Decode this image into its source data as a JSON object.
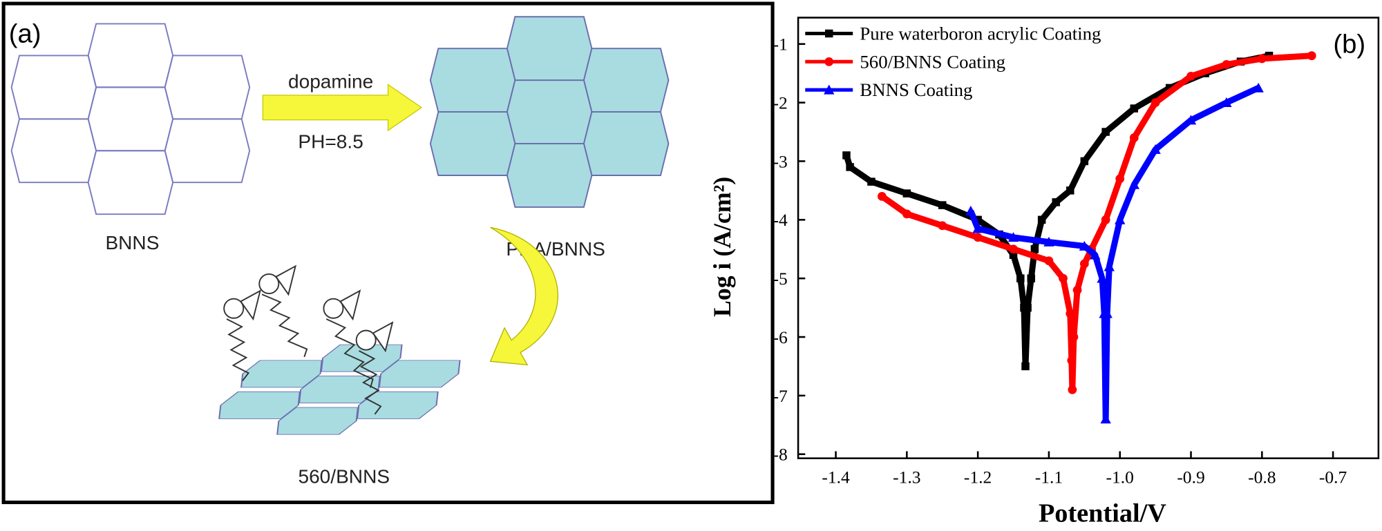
{
  "diagram": {
    "label": "(a)",
    "arrow_label": "dopamine",
    "condition": "PH=8.5",
    "nodes": [
      {
        "label": "BNNS"
      },
      {
        "label": "PDA/BNNS"
      },
      {
        "label": "560/BNNS"
      }
    ]
  },
  "chart_data": {
    "type": "line",
    "panel_label": "(b)",
    "xlabel": "Potential/V",
    "ylabel": "Log i (A/cm²)",
    "xlim": [
      -1.453,
      -0.636
    ],
    "ylim": [
      -8.07,
      -0.55
    ],
    "xticks": [
      -1.4,
      -1.3,
      -1.2,
      -1.1,
      {
        "value": -1,
        "label": "-1.0"
      },
      -0.9,
      -0.8,
      -0.7
    ],
    "yticks": [
      -8,
      -7,
      -6,
      -5,
      -4,
      -3,
      -2,
      -1
    ],
    "legend": "upper left",
    "series": [
      {
        "name": "Pure waterboron acrylic Coating",
        "color": "#000000",
        "marker": "square",
        "x": [
          -1.385,
          -1.38,
          -1.35,
          -1.3,
          -1.25,
          -1.2,
          -1.17,
          -1.15,
          -1.14,
          -1.135,
          -1.133,
          -1.13,
          -1.125,
          -1.12,
          -1.11,
          -1.09,
          -1.07,
          -1.05,
          -1.02,
          -0.98,
          -0.93,
          -0.88,
          -0.83,
          -0.79
        ],
        "values": [
          -2.9,
          -3.1,
          -3.35,
          -3.55,
          -3.75,
          -4.0,
          -4.25,
          -4.6,
          -5.0,
          -5.5,
          -6.5,
          -5.5,
          -5.0,
          -4.5,
          -4.0,
          -3.7,
          -3.5,
          -3.0,
          -2.5,
          -2.1,
          -1.75,
          -1.5,
          -1.3,
          -1.2
        ]
      },
      {
        "name": "560/BNNS Coating",
        "color": "#ff0000",
        "marker": "circle",
        "x": [
          -1.335,
          -1.3,
          -1.25,
          -1.2,
          -1.15,
          -1.1,
          -1.08,
          -1.07,
          -1.068,
          -1.067,
          -1.065,
          -1.06,
          -1.05,
          -1.04,
          -1.02,
          -1.0,
          -0.98,
          -0.95,
          -0.9,
          -0.85,
          -0.8,
          -0.73
        ],
        "values": [
          -3.6,
          -3.9,
          -4.1,
          -4.3,
          -4.5,
          -4.7,
          -5.0,
          -5.6,
          -6.4,
          -6.9,
          -6.0,
          -5.2,
          -4.75,
          -4.5,
          -4.0,
          -3.3,
          -2.6,
          -2.0,
          -1.55,
          -1.35,
          -1.25,
          -1.2
        ]
      },
      {
        "name": "BNNS Coating",
        "color": "#0000ff",
        "marker": "triangle",
        "x": [
          -1.21,
          -1.2,
          -1.15,
          -1.1,
          -1.05,
          -1.035,
          -1.025,
          -1.022,
          -1.02,
          -1.018,
          -1.015,
          -1.0,
          -0.98,
          -0.95,
          -0.9,
          -0.85,
          -0.805
        ],
        "values": [
          -3.85,
          -4.15,
          -4.3,
          -4.38,
          -4.45,
          -4.6,
          -5.0,
          -5.6,
          -7.4,
          -5.6,
          -4.8,
          -4.0,
          -3.4,
          -2.8,
          -2.3,
          -2.0,
          -1.75
        ]
      }
    ]
  }
}
